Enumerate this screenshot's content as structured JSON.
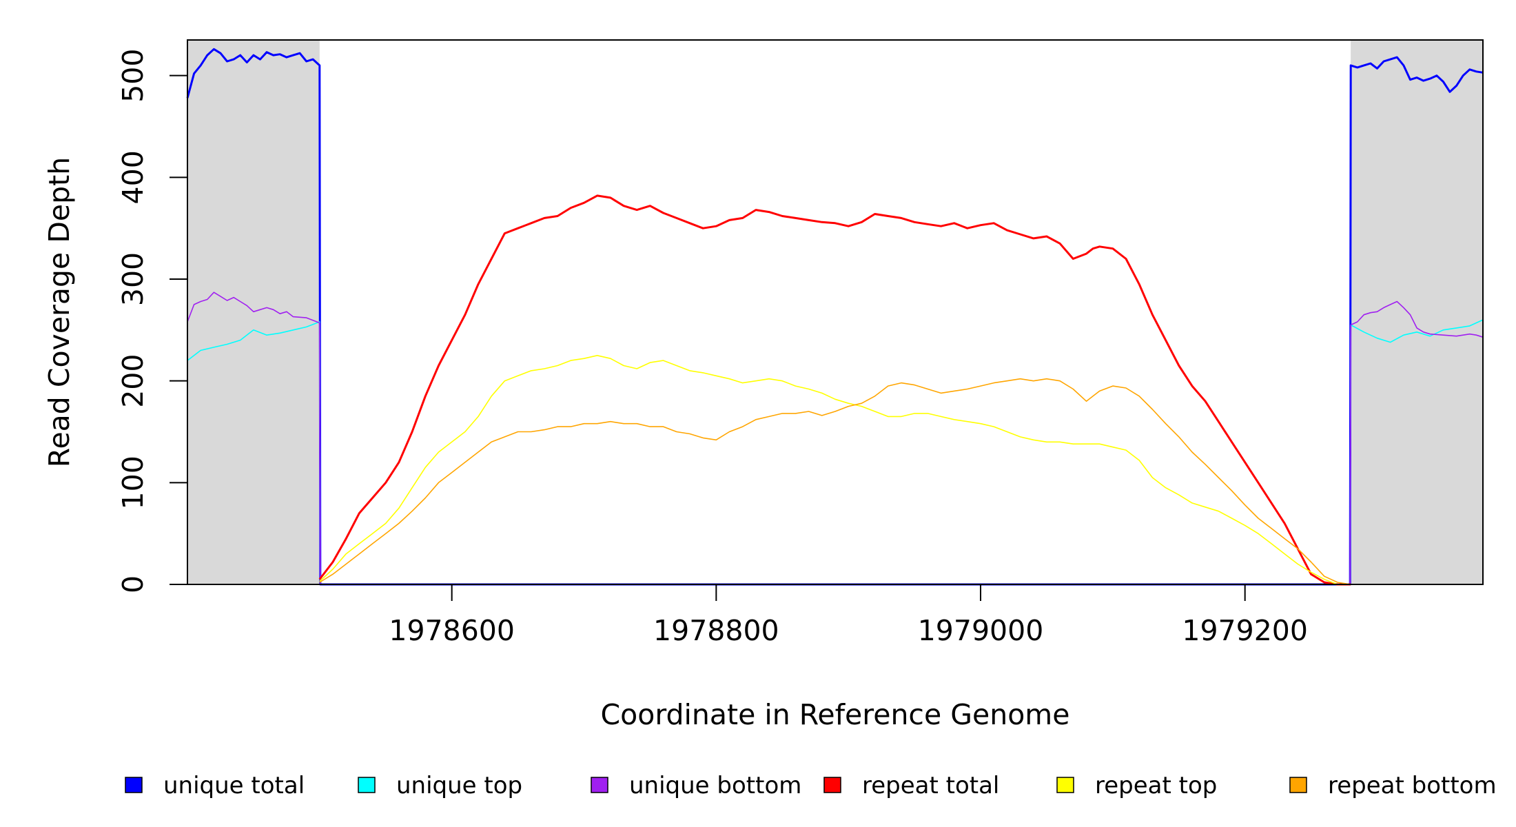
{
  "chart_data": {
    "type": "line",
    "title": "",
    "xlabel": "Coordinate in Reference Genome",
    "ylabel": "Read Coverage Depth",
    "xlim": [
      1978400,
      1979380
    ],
    "ylim": [
      0,
      535
    ],
    "x_ticks": [
      1978600,
      1978800,
      1979000,
      1979200
    ],
    "y_ticks": [
      0,
      100,
      200,
      300,
      400,
      500
    ],
    "shaded_regions": [
      [
        1978400,
        1978500
      ],
      [
        1979280,
        1979380
      ]
    ],
    "shaded_color": "#d9d9d9",
    "legend_position": "bottom",
    "grid": false,
    "series": [
      {
        "name": "unique total",
        "color": "#0000ff",
        "x": [
          1978400,
          1978405,
          1978410,
          1978415,
          1978420,
          1978425,
          1978430,
          1978435,
          1978440,
          1978445,
          1978450,
          1978455,
          1978460,
          1978465,
          1978470,
          1978475,
          1978480,
          1978485,
          1978490,
          1978495,
          1978500,
          1978500.5,
          1979279.5,
          1979280,
          1979285,
          1979290,
          1979295,
          1979300,
          1979305,
          1979310,
          1979315,
          1979320,
          1979325,
          1979330,
          1979335,
          1979340,
          1979345,
          1979350,
          1979355,
          1979360,
          1979365,
          1979370,
          1979375,
          1979380
        ],
        "values": [
          478,
          502,
          510,
          520,
          526,
          522,
          514,
          516,
          520,
          513,
          520,
          516,
          523,
          520,
          521,
          518,
          520,
          522,
          514,
          516,
          510,
          0,
          0,
          510,
          508,
          510,
          512,
          507,
          514,
          516,
          518,
          510,
          496,
          498,
          495,
          497,
          500,
          494,
          484,
          490,
          500,
          506,
          504,
          503
        ]
      },
      {
        "name": "unique top",
        "color": "#00ffff",
        "x": [
          1978400,
          1978410,
          1978420,
          1978430,
          1978440,
          1978450,
          1978460,
          1978470,
          1978480,
          1978490,
          1978500,
          1978500.5,
          1979279.5,
          1979280,
          1979290,
          1979300,
          1979310,
          1979320,
          1979330,
          1979340,
          1979350,
          1979360,
          1979370,
          1979380
        ],
        "values": [
          220,
          230,
          233,
          236,
          240,
          250,
          245,
          247,
          250,
          253,
          258,
          0,
          0,
          255,
          248,
          242,
          238,
          245,
          248,
          244,
          250,
          252,
          254,
          260
        ]
      },
      {
        "name": "unique bottom",
        "color": "#a020f0",
        "x": [
          1978400,
          1978405,
          1978410,
          1978415,
          1978420,
          1978425,
          1978430,
          1978435,
          1978440,
          1978445,
          1978450,
          1978455,
          1978460,
          1978465,
          1978470,
          1978475,
          1978480,
          1978490,
          1978500,
          1978500.5,
          1979279.5,
          1979280,
          1979285,
          1979290,
          1979295,
          1979300,
          1979305,
          1979310,
          1979315,
          1979320,
          1979325,
          1979330,
          1979335,
          1979340,
          1979350,
          1979360,
          1979370,
          1979375,
          1979380
        ],
        "values": [
          258,
          275,
          278,
          280,
          287,
          283,
          279,
          282,
          278,
          274,
          268,
          270,
          272,
          270,
          266,
          268,
          263,
          262,
          257,
          0,
          0,
          255,
          258,
          265,
          267,
          268,
          272,
          275,
          278,
          272,
          265,
          252,
          248,
          246,
          245,
          244,
          246,
          245,
          243
        ]
      },
      {
        "name": "repeat total",
        "color": "#ff0000",
        "x": [
          1978500,
          1978510,
          1978520,
          1978530,
          1978540,
          1978550,
          1978560,
          1978570,
          1978580,
          1978590,
          1978600,
          1978610,
          1978620,
          1978630,
          1978640,
          1978650,
          1978660,
          1978670,
          1978680,
          1978690,
          1978700,
          1978710,
          1978720,
          1978730,
          1978740,
          1978750,
          1978760,
          1978770,
          1978780,
          1978790,
          1978800,
          1978810,
          1978820,
          1978830,
          1978840,
          1978850,
          1978860,
          1978870,
          1978880,
          1978890,
          1978900,
          1978910,
          1978920,
          1978930,
          1978940,
          1978950,
          1978960,
          1978970,
          1978980,
          1978990,
          1979000,
          1979010,
          1979020,
          1979030,
          1979040,
          1979050,
          1979060,
          1979070,
          1979080,
          1979085,
          1979090,
          1979100,
          1979110,
          1979120,
          1979130,
          1979140,
          1979150,
          1979160,
          1979170,
          1979180,
          1979190,
          1979200,
          1979210,
          1979220,
          1979230,
          1979240,
          1979250,
          1979260,
          1979270,
          1979280
        ],
        "values": [
          5,
          22,
          45,
          70,
          85,
          100,
          120,
          150,
          185,
          215,
          240,
          265,
          295,
          320,
          345,
          350,
          355,
          360,
          362,
          370,
          375,
          382,
          380,
          372,
          368,
          372,
          365,
          360,
          355,
          350,
          352,
          358,
          360,
          368,
          366,
          362,
          360,
          358,
          356,
          355,
          352,
          356,
          364,
          362,
          360,
          356,
          354,
          352,
          355,
          350,
          353,
          355,
          348,
          344,
          340,
          342,
          335,
          320,
          325,
          330,
          332,
          330,
          320,
          295,
          265,
          240,
          215,
          195,
          180,
          160,
          140,
          120,
          100,
          80,
          60,
          35,
          10,
          2,
          0,
          0
        ]
      },
      {
        "name": "repeat top",
        "color": "#ffff00",
        "x": [
          1978500,
          1978510,
          1978520,
          1978530,
          1978540,
          1978550,
          1978560,
          1978570,
          1978580,
          1978590,
          1978600,
          1978610,
          1978620,
          1978630,
          1978640,
          1978650,
          1978660,
          1978670,
          1978680,
          1978690,
          1978700,
          1978710,
          1978720,
          1978730,
          1978740,
          1978750,
          1978760,
          1978770,
          1978780,
          1978790,
          1978800,
          1978810,
          1978820,
          1978830,
          1978840,
          1978850,
          1978860,
          1978870,
          1978880,
          1978890,
          1978900,
          1978910,
          1978920,
          1978930,
          1978940,
          1978950,
          1978960,
          1978970,
          1978980,
          1978990,
          1979000,
          1979010,
          1979020,
          1979030,
          1979040,
          1979050,
          1979060,
          1979070,
          1979080,
          1979090,
          1979100,
          1979110,
          1979120,
          1979130,
          1979140,
          1979150,
          1979160,
          1979170,
          1979180,
          1979190,
          1979200,
          1979210,
          1979220,
          1979230,
          1979240,
          1979250,
          1979260,
          1979270,
          1979280
        ],
        "values": [
          3,
          15,
          30,
          40,
          50,
          60,
          75,
          95,
          115,
          130,
          140,
          150,
          165,
          185,
          200,
          205,
          210,
          212,
          215,
          220,
          222,
          225,
          222,
          215,
          212,
          218,
          220,
          215,
          210,
          208,
          205,
          202,
          198,
          200,
          202,
          200,
          195,
          192,
          188,
          182,
          178,
          175,
          170,
          165,
          165,
          168,
          168,
          165,
          162,
          160,
          158,
          155,
          150,
          145,
          142,
          140,
          140,
          138,
          138,
          138,
          135,
          132,
          122,
          105,
          95,
          88,
          80,
          76,
          72,
          65,
          58,
          50,
          40,
          30,
          20,
          12,
          5,
          0,
          0
        ]
      },
      {
        "name": "repeat bottom",
        "color": "#ffa500",
        "x": [
          1978500,
          1978510,
          1978520,
          1978530,
          1978540,
          1978550,
          1978560,
          1978570,
          1978580,
          1978590,
          1978600,
          1978610,
          1978620,
          1978630,
          1978640,
          1978650,
          1978660,
          1978670,
          1978680,
          1978690,
          1978700,
          1978710,
          1978720,
          1978730,
          1978740,
          1978750,
          1978760,
          1978770,
          1978780,
          1978790,
          1978800,
          1978810,
          1978820,
          1978830,
          1978840,
          1978850,
          1978860,
          1978870,
          1978880,
          1978890,
          1978900,
          1978910,
          1978920,
          1978930,
          1978940,
          1978950,
          1978960,
          1978970,
          1978980,
          1978990,
          1979000,
          1979010,
          1979020,
          1979030,
          1979040,
          1979050,
          1979060,
          1979070,
          1979080,
          1979085,
          1979090,
          1979100,
          1979110,
          1979120,
          1979130,
          1979140,
          1979150,
          1979160,
          1979170,
          1979180,
          1979190,
          1979200,
          1979210,
          1979220,
          1979230,
          1979240,
          1979250,
          1979260,
          1979270,
          1979280
        ],
        "values": [
          2,
          10,
          20,
          30,
          40,
          50,
          60,
          72,
          85,
          100,
          110,
          120,
          130,
          140,
          145,
          150,
          150,
          152,
          155,
          155,
          158,
          158,
          160,
          158,
          158,
          155,
          155,
          150,
          148,
          144,
          142,
          150,
          155,
          162,
          165,
          168,
          168,
          170,
          166,
          170,
          175,
          178,
          185,
          195,
          198,
          196,
          192,
          188,
          190,
          192,
          195,
          198,
          200,
          202,
          200,
          202,
          200,
          192,
          180,
          185,
          190,
          195,
          193,
          185,
          172,
          158,
          145,
          130,
          118,
          105,
          92,
          78,
          65,
          55,
          45,
          35,
          22,
          8,
          2,
          0
        ]
      }
    ]
  }
}
